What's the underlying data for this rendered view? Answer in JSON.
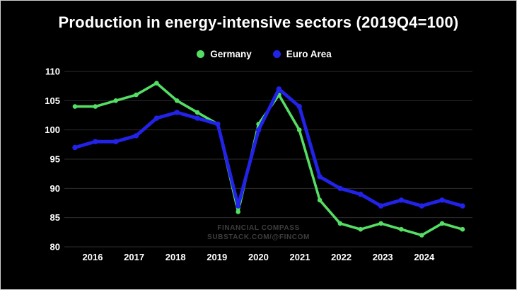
{
  "title": "Production in energy-intensive sectors (2019Q4=100)",
  "legend": [
    {
      "label": "Germany",
      "color": "#54de64"
    },
    {
      "label": "Euro Area",
      "color": "#2222e8"
    }
  ],
  "watermark": {
    "line1": "FINANCIAL COMPASS",
    "line2": "SUBSTACK.COM/@FINCOM"
  },
  "chart_data": {
    "type": "line",
    "title": "Production in energy-intensive sectors (2019Q4=100)",
    "frequency": "semiannual (2 data points per year)",
    "x_tick_labels": [
      "2016",
      "2017",
      "2018",
      "2019",
      "2020",
      "2021",
      "2022",
      "2023",
      "2024"
    ],
    "y_ticks": [
      80,
      85,
      90,
      95,
      100,
      105,
      110
    ],
    "ylim": [
      80,
      110
    ],
    "grid": "horizontal gridlines only",
    "legend_position": "top center",
    "background_color": "#000000",
    "gridline_color": "#2c2c2c",
    "tick_label_color": "#ffffff",
    "series": [
      {
        "name": "Germany",
        "color": "#54de64",
        "values": [
          104,
          104,
          105,
          106,
          108,
          105,
          103,
          101,
          86,
          101,
          106,
          100,
          88,
          84,
          83,
          84,
          83,
          82,
          84,
          83
        ]
      },
      {
        "name": "Euro Area",
        "color": "#2222e8",
        "values": [
          97,
          98,
          98,
          99,
          102,
          103,
          102,
          101,
          87,
          100,
          107,
          104,
          92,
          90,
          89,
          87,
          88,
          87,
          88,
          87
        ]
      }
    ]
  }
}
